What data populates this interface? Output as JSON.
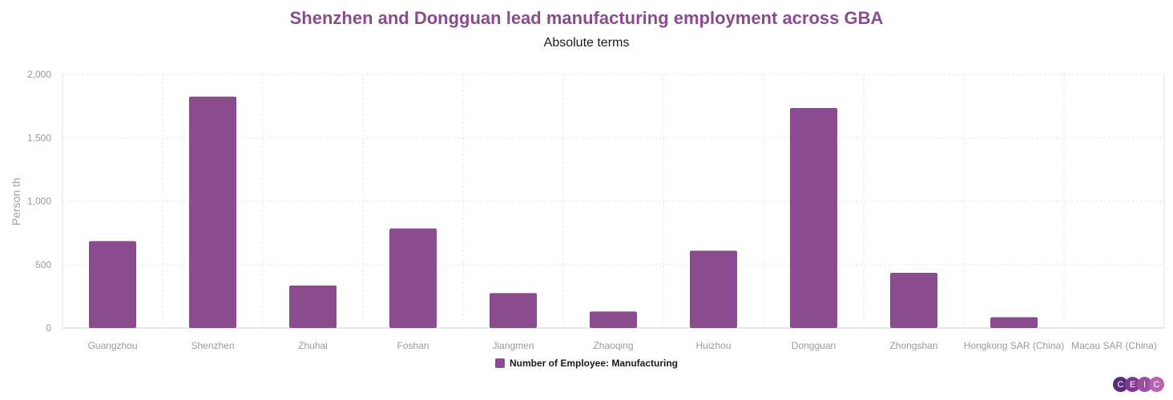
{
  "chart_data": {
    "type": "bar",
    "title": "Shenzhen and Dongguan lead manufacturing employment across GBA",
    "subtitle": "Absolute terms",
    "xlabel": "",
    "ylabel": "Person th",
    "ylim": [
      0,
      2000
    ],
    "yticks": [
      0,
      500,
      1000,
      1500,
      2000
    ],
    "ytick_labels": [
      "0",
      "500",
      "1,000",
      "1,500",
      "2,000"
    ],
    "grid": true,
    "legend_position": "bottom-center",
    "categories": [
      "Guangzhou",
      "Shenzhen",
      "Zhuhai",
      "Foshan",
      "Jiangmen",
      "Zhaoqing",
      "Huizhou",
      "Dongguan",
      "Zhongshan",
      "Hongkong SAR (China)",
      "Macau SAR (China)"
    ],
    "series": [
      {
        "name": "Number of Employee: Manufacturing",
        "color": "#8a4b8f",
        "values": [
          685,
          1825,
          335,
          785,
          275,
          130,
          610,
          1735,
          435,
          85,
          null
        ]
      }
    ]
  },
  "logo": {
    "letters": [
      "C",
      "E",
      "I",
      "C"
    ],
    "colors": [
      "#5a2d7a",
      "#7c3a8e",
      "#9b4fa0",
      "#b565b0"
    ]
  }
}
